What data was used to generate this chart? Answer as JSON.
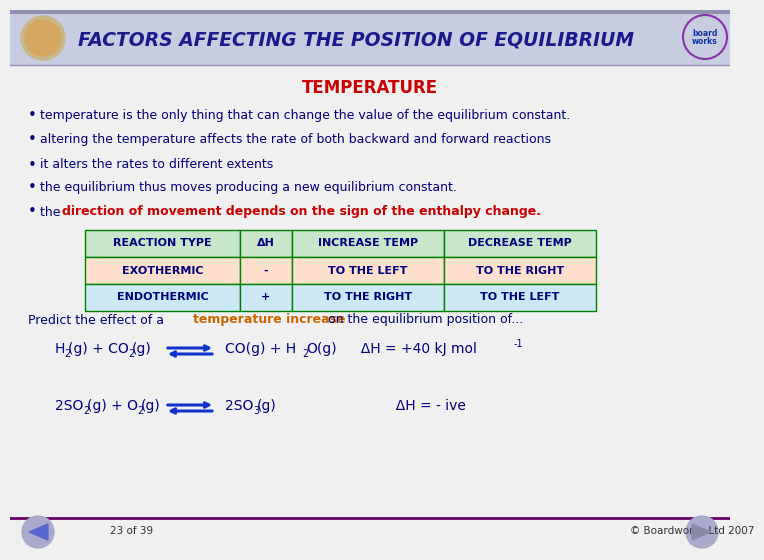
{
  "title": "FACTORS AFFECTING THE POSITION OF EQUILIBRIUM",
  "title_color": "#1a1a8c",
  "subtitle": "TEMPERATURE",
  "subtitle_color": "#cc0000",
  "bg_color": "#f0f0f0",
  "header_bg": "#c8cce0",
  "bullet_color": "#000080",
  "bullet_points": [
    "temperature is the only thing that can change the value of the equilibrium constant.",
    "altering the temperature affects the rate of both backward and forward reactions",
    "it alters the rates to different extents",
    "the equilibrium thus moves producing a new equilibrium constant."
  ],
  "last_bullet_plain": "the ",
  "last_bullet_colored": "direction of movement depends on the sign of the enthalpy change.",
  "last_bullet_color": "#cc0000",
  "table": {
    "headers": [
      "REACTION TYPE",
      "ΔH",
      "INCREASE TEMP",
      "DECREASE TEMP"
    ],
    "header_bg": "#c8e6c9",
    "header_text": "#000080",
    "border_color": "#008000",
    "rows": [
      {
        "cells": [
          "EXOTHERMIC",
          "-",
          "TO THE LEFT",
          "TO THE RIGHT"
        ],
        "bg": "#ffe0cc"
      },
      {
        "cells": [
          "ENDOTHERMIC",
          "+",
          "TO THE RIGHT",
          "TO THE LEFT"
        ],
        "bg": "#cce8f4"
      }
    ]
  },
  "predict_plain1": "Predict the effect of a ",
  "predict_colored": "temperature increase",
  "predict_color": "#cc6600",
  "predict_plain2": " on the equilibrium position of...",
  "text_color": "#000080",
  "footer_line_color": "#660066",
  "footer_left": "23 of 39",
  "footer_right": "© Boardworks Ltd 2007",
  "footer_color": "#333333"
}
